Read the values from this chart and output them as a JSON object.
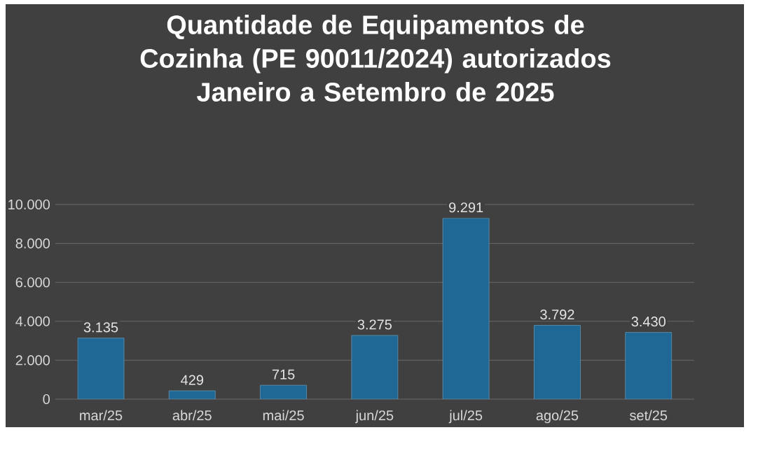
{
  "chart_data": {
    "type": "bar",
    "title": "Quantidade de Equipamentos de Cozinha (PE 90011/2024) autorizados",
    "subtitle": "Janeiro a Setembro de 2025",
    "categories": [
      "mar/25",
      "abr/25",
      "mai/25",
      "jun/25",
      "jul/25",
      "ago/25",
      "set/25"
    ],
    "values": [
      3135,
      429,
      715,
      3275,
      9291,
      3792,
      3430
    ],
    "color": "#1f6794",
    "value_labels": [
      "3.135",
      "429",
      "715",
      "3.275",
      "9.291",
      "3.792",
      "3.430"
    ],
    "ylim": [
      0,
      10000
    ],
    "yticks": [
      0,
      {
        "value": 2000,
        "label": "2.000"
      },
      {
        "value": 4000,
        "label": "4.000"
      },
      {
        "value": 6000,
        "label": "6.000"
      },
      {
        "value": 8000,
        "label": "8.000"
      },
      {
        "value": 10000,
        "label": "10.000"
      }
    ],
    "grid": "y"
  }
}
